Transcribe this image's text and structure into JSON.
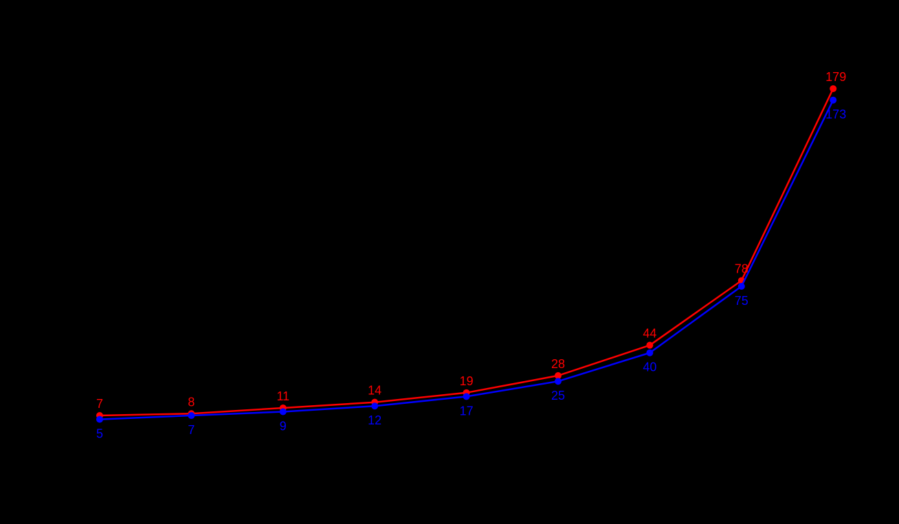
{
  "chart_data": {
    "type": "line",
    "title": "",
    "xlabel": "",
    "ylabel": "",
    "background": "#000000",
    "grid": false,
    "legend": null,
    "x": [
      1,
      2,
      3,
      4,
      5,
      6,
      7,
      8,
      9
    ],
    "ylim": [
      0,
      190
    ],
    "series": [
      {
        "name": "red-series",
        "color": "#ff0000",
        "values": [
          7,
          8,
          11,
          14,
          19,
          28,
          44,
          78,
          179
        ],
        "label_position": "above"
      },
      {
        "name": "blue-series",
        "color": "#0000ff",
        "values": [
          5,
          7,
          9,
          12,
          17,
          25,
          40,
          75,
          173
        ],
        "label_position": "below"
      }
    ]
  }
}
